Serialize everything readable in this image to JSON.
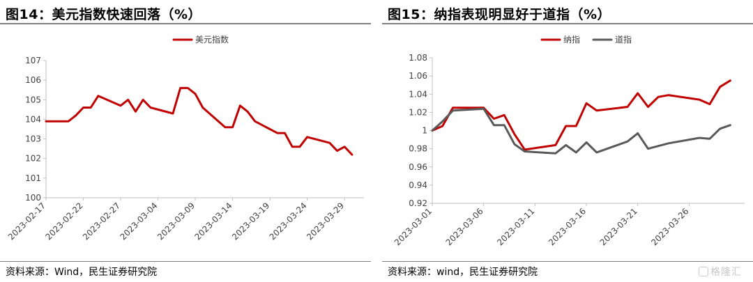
{
  "left": {
    "title": "图14：美元指数快速回落（%）",
    "source": "资料来源：Wind，民生证券研究院"
  },
  "right": {
    "title": "图15：纳指表现明显好于道指（%）",
    "source": "资料来源：wind，民生证券研究院"
  },
  "watermark": "格隆汇",
  "chart_data": [
    {
      "type": "line",
      "title": "图14：美元指数快速回落（%）",
      "xlabel": "",
      "ylabel": "",
      "ylim": [
        100,
        107
      ],
      "yticks": [
        100,
        101,
        102,
        103,
        104,
        105,
        106,
        107
      ],
      "xticks": [
        "2023-02-17",
        "2023-02-22",
        "2023-02-27",
        "2023-03-04",
        "2023-03-09",
        "2023-03-14",
        "2023-03-19",
        "2023-03-24",
        "2023-03-29"
      ],
      "legend": "top-center",
      "grid": false,
      "colors": {
        "美元指数": "#c00000"
      },
      "series": [
        {
          "name": "美元指数",
          "x": [
            "2023-02-17",
            "2023-02-20",
            "2023-02-21",
            "2023-02-22",
            "2023-02-23",
            "2023-02-24",
            "2023-02-27",
            "2023-02-28",
            "2023-03-01",
            "2023-03-02",
            "2023-03-03",
            "2023-03-06",
            "2023-03-07",
            "2023-03-08",
            "2023-03-09",
            "2023-03-10",
            "2023-03-13",
            "2023-03-14",
            "2023-03-15",
            "2023-03-16",
            "2023-03-17",
            "2023-03-20",
            "2023-03-21",
            "2023-03-22",
            "2023-03-23",
            "2023-03-24",
            "2023-03-27",
            "2023-03-28",
            "2023-03-29",
            "2023-03-30"
          ],
          "values": [
            103.9,
            103.9,
            104.2,
            104.6,
            104.6,
            105.2,
            104.7,
            105.0,
            104.4,
            105.0,
            104.6,
            104.3,
            105.6,
            105.6,
            105.3,
            104.6,
            103.6,
            103.6,
            104.7,
            104.4,
            103.9,
            103.3,
            103.3,
            102.6,
            102.6,
            103.1,
            102.8,
            102.4,
            102.6,
            102.2
          ]
        }
      ]
    },
    {
      "type": "line",
      "title": "图15：纳指表现明显好于道指（%）",
      "xlabel": "",
      "ylabel": "",
      "ylim": [
        0.92,
        1.08
      ],
      "yticks": [
        "0.92",
        "0.94",
        "0.96",
        "0.98",
        "1",
        "1.02",
        "1.04",
        "1.06",
        "1.08"
      ],
      "xticks": [
        "2023-03-01",
        "2023-03-06",
        "2023-03-11",
        "2023-03-16",
        "2023-03-21",
        "2023-03-26"
      ],
      "legend": "top-center",
      "grid": false,
      "colors": {
        "纳指": "#c00000",
        "道指": "#595959"
      },
      "series": [
        {
          "name": "纳指",
          "x": [
            "2023-03-01",
            "2023-03-02",
            "2023-03-03",
            "2023-03-06",
            "2023-03-07",
            "2023-03-08",
            "2023-03-09",
            "2023-03-10",
            "2023-03-13",
            "2023-03-14",
            "2023-03-15",
            "2023-03-16",
            "2023-03-17",
            "2023-03-20",
            "2023-03-21",
            "2023-03-22",
            "2023-03-23",
            "2023-03-24",
            "2023-03-27",
            "2023-03-28",
            "2023-03-29",
            "2023-03-30"
          ],
          "values": [
            1.0,
            1.005,
            1.025,
            1.025,
            1.013,
            1.017,
            0.996,
            0.979,
            0.984,
            1.005,
            1.005,
            1.03,
            1.022,
            1.026,
            1.041,
            1.026,
            1.037,
            1.039,
            1.034,
            1.029,
            1.048,
            1.055
          ]
        },
        {
          "name": "道指",
          "x": [
            "2023-03-01",
            "2023-03-02",
            "2023-03-03",
            "2023-03-06",
            "2023-03-07",
            "2023-03-08",
            "2023-03-09",
            "2023-03-10",
            "2023-03-13",
            "2023-03-14",
            "2023-03-15",
            "2023-03-16",
            "2023-03-17",
            "2023-03-20",
            "2023-03-21",
            "2023-03-22",
            "2023-03-23",
            "2023-03-24",
            "2023-03-27",
            "2023-03-28",
            "2023-03-29",
            "2023-03-30"
          ],
          "values": [
            1.0,
            1.01,
            1.022,
            1.024,
            1.006,
            1.006,
            0.985,
            0.977,
            0.975,
            0.984,
            0.976,
            0.987,
            0.976,
            0.988,
            0.997,
            0.98,
            0.983,
            0.986,
            0.992,
            0.991,
            1.002,
            1.006
          ]
        }
      ]
    }
  ]
}
